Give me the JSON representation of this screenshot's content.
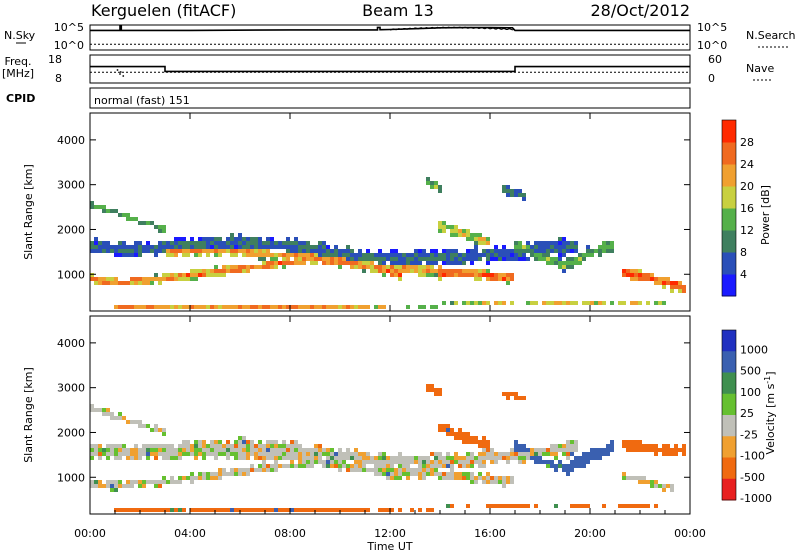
{
  "header": {
    "station": "Kerguelen (fitACF)",
    "beam": "Beam 13",
    "date": "28/Oct/2012"
  },
  "strip_labels": {
    "nsky": "N.Sky",
    "nsearch": "N.Search",
    "freq_line1": "Freq.",
    "freq_line2": "[MHz]",
    "nave": "Nave",
    "cpid": "CPID",
    "cpid_value": "normal (fast) 151"
  },
  "noise_ticks": [
    "10^5",
    "10^0"
  ],
  "freq_ticks": [
    "18",
    "8"
  ],
  "nave_ticks": [
    "60",
    "0"
  ],
  "colors": {
    "power": [
      "#1a1aff",
      "#2a4fb8",
      "#3f7f5f",
      "#55b04a",
      "#c8d040",
      "#f0a030",
      "#f06a20",
      "#ff2a00"
    ],
    "velocity": [
      "#2030c0",
      "#3a60b0",
      "#3f8f4f",
      "#66c030",
      "#c0c0b8",
      "#f0a030",
      "#f06a10",
      "#e82020"
    ],
    "axis": "#000000"
  },
  "chart_data": [
    {
      "type": "line",
      "name": "noise-strip",
      "x_range_hours": [
        0,
        24
      ],
      "series": [
        {
          "name": "N.Sky",
          "x": [
            0,
            1.2,
            1.2,
            1.25,
            1.25,
            4,
            8,
            11.5,
            11.5,
            11.6,
            11.6,
            12,
            13,
            14,
            15,
            16,
            16.9,
            17,
            24
          ],
          "y": [
            4.2,
            4.2,
            5.3,
            5.3,
            4.2,
            4.2,
            4.3,
            4.3,
            4.9,
            4.9,
            4.35,
            4.4,
            4.6,
            4.8,
            4.85,
            4.85,
            4.8,
            4.2,
            4.2
          ]
        },
        {
          "name": "N.Search",
          "x": [
            0,
            24
          ],
          "y": [
            0.9,
            0.9
          ]
        }
      ]
    },
    {
      "type": "line",
      "name": "frequency-strip",
      "x_range_hours": [
        0,
        24
      ],
      "series": [
        {
          "name": "Freq.",
          "x": [
            0,
            3,
            3,
            17,
            17,
            24
          ],
          "y": [
            14,
            14,
            12,
            12,
            14,
            14
          ]
        },
        {
          "name": "Nave",
          "x": [
            0,
            24
          ],
          "y": [
            22,
            22
          ]
        }
      ],
      "ylim_freq": [
        8,
        18
      ],
      "ylim_nave": [
        0,
        60
      ]
    },
    {
      "type": "heatmap",
      "name": "power-panel",
      "ylabel": "Slant Range [km]",
      "yticks": [
        "1000",
        "2000",
        "3000",
        "4000"
      ],
      "ylim": [
        180,
        4600
      ],
      "colorbar_label": "Power [dB]",
      "colorbar_ticks": [
        "4",
        "8",
        "12",
        "16",
        "20",
        "24",
        "28"
      ],
      "vmin": 0,
      "vmax": 32,
      "bands": [
        {
          "x": [
            0,
            0.4,
            1,
            2,
            3,
            4,
            5,
            6,
            7,
            8,
            9,
            10,
            11,
            12,
            12.5
          ],
          "y": [
            900,
            850,
            820,
            860,
            900,
            980,
            1050,
            1120,
            1200,
            1280,
            1320,
            1260,
            1180,
            1050,
            980
          ],
          "w": 170,
          "p": 25
        },
        {
          "x": [
            3,
            4,
            5,
            6,
            7,
            8,
            9,
            10,
            11,
            12,
            13,
            14
          ],
          "y": [
            1480,
            1550,
            1550,
            1520,
            1470,
            1420,
            1380,
            1300,
            1200,
            1130,
            1100,
            1100
          ],
          "w": 220,
          "p": 23
        },
        {
          "x": [
            0,
            1,
            2,
            3
          ],
          "y": [
            2550,
            2380,
            2200,
            2000
          ],
          "w": 120,
          "p": 14
        },
        {
          "x": [
            0,
            2,
            4,
            6,
            8,
            10,
            12,
            14,
            16,
            18,
            19.5
          ],
          "y": [
            1600,
            1550,
            1650,
            1700,
            1620,
            1450,
            1350,
            1350,
            1450,
            1550,
            1650
          ],
          "w": 300,
          "p": 8
        },
        {
          "x": [
            14,
            14.5,
            15,
            15.5,
            16,
            16.5,
            17
          ],
          "y": [
            1020,
            1040,
            1000,
            980,
            960,
            930,
            940
          ],
          "w": 200,
          "p": 27
        },
        {
          "x": [
            14,
            14.5,
            15,
            15.5,
            16
          ],
          "y": [
            2100,
            2000,
            1900,
            1800,
            1700
          ],
          "w": 220,
          "p": 19
        },
        {
          "x": [
            17,
            17.5,
            18,
            18.5,
            19,
            19.5,
            20,
            21
          ],
          "y": [
            1700,
            1550,
            1400,
            1300,
            1200,
            1300,
            1500,
            1650
          ],
          "w": 240,
          "p": 13
        },
        {
          "x": [
            21.3,
            21.8,
            22.3,
            22.8,
            23.3,
            23.8
          ],
          "y": [
            1050,
            1000,
            920,
            850,
            760,
            700
          ],
          "w": 220,
          "p": 28
        },
        {
          "x": [
            1,
            4,
            8,
            12,
            16,
            20,
            23.5
          ],
          "y": [
            280,
            250,
            270,
            300,
            330,
            330,
            320
          ],
          "w": 70,
          "p": 24
        },
        {
          "x": [
            13.5,
            14
          ],
          "y": [
            3050,
            2900
          ],
          "w": 200,
          "p": 13
        },
        {
          "x": [
            16.5,
            17.5
          ],
          "y": [
            2900,
            2750
          ],
          "w": 160,
          "p": 9
        }
      ]
    },
    {
      "type": "heatmap",
      "name": "velocity-panel",
      "ylabel": "Slant Range [km]",
      "yticks": [
        "1000",
        "2000",
        "3000",
        "4000"
      ],
      "ylim": [
        180,
        4600
      ],
      "xlabel": "Time UT",
      "xticks": [
        "00:00",
        "04:00",
        "08:00",
        "12:00",
        "16:00",
        "20:00",
        "00:00"
      ],
      "colorbar_label": "Velocity [m s^-1]",
      "colorbar_ticks": [
        "1000",
        "500",
        "100",
        "25",
        "-25",
        "-100",
        "-500",
        "-1000"
      ],
      "vmin": -1200,
      "vmax": 1200,
      "bands": [
        {
          "x": [
            0,
            0.4,
            1,
            2,
            3,
            4,
            5,
            6,
            7,
            8,
            9,
            10,
            11,
            12,
            12.5
          ],
          "y": [
            900,
            850,
            820,
            860,
            900,
            980,
            1050,
            1120,
            1200,
            1280,
            1320,
            1260,
            1180,
            1050,
            980
          ],
          "w": 170,
          "v": 0
        },
        {
          "x": [
            3,
            4,
            5,
            6,
            7,
            8,
            9,
            10,
            11,
            12,
            13,
            14
          ],
          "y": [
            1480,
            1550,
            1550,
            1520,
            1470,
            1420,
            1380,
            1300,
            1200,
            1130,
            1100,
            1100
          ],
          "w": 220,
          "v": 0
        },
        {
          "x": [
            0,
            1,
            2,
            3
          ],
          "y": [
            2550,
            2380,
            2200,
            2000
          ],
          "w": 120,
          "v": 0
        },
        {
          "x": [
            0,
            2,
            4,
            6,
            8,
            10,
            12,
            14,
            16,
            18,
            19.5
          ],
          "y": [
            1600,
            1550,
            1650,
            1700,
            1620,
            1450,
            1350,
            1350,
            1450,
            1550,
            1650
          ],
          "w": 300,
          "v": 0
        },
        {
          "x": [
            14,
            14.5,
            15,
            15.5,
            16,
            16.5,
            17
          ],
          "y": [
            1020,
            1040,
            1000,
            980,
            960,
            930,
            940
          ],
          "w": 200,
          "v": 0
        },
        {
          "x": [
            14,
            14.5,
            15,
            15.5,
            16
          ],
          "y": [
            2100,
            2000,
            1900,
            1800,
            1700
          ],
          "w": 220,
          "v": -150
        },
        {
          "x": [
            17,
            17.5,
            18,
            18.5,
            19,
            19.5,
            20,
            21
          ],
          "y": [
            1700,
            1550,
            1400,
            1300,
            1200,
            1300,
            1500,
            1650
          ],
          "w": 240,
          "v": 300
        },
        {
          "x": [
            21.3,
            21.8,
            22.3,
            22.8,
            23.3,
            23.8
          ],
          "y": [
            1750,
            1700,
            1650,
            1620,
            1600,
            1580
          ],
          "w": 200,
          "v": -250
        },
        {
          "x": [
            21.3,
            22.3,
            23.3
          ],
          "y": [
            1050,
            900,
            760
          ],
          "w": 150,
          "v": 0
        },
        {
          "x": [
            1,
            4,
            8,
            12,
            16,
            20,
            23.5
          ],
          "y": [
            280,
            250,
            270,
            300,
            330,
            330,
            320
          ],
          "w": 70,
          "v": -150
        },
        {
          "x": [
            13.5,
            14
          ],
          "y": [
            3050,
            2900
          ],
          "w": 200,
          "v": -200
        },
        {
          "x": [
            16.5,
            17.5
          ],
          "y": [
            2900,
            2750
          ],
          "w": 160,
          "v": -200
        }
      ]
    }
  ]
}
